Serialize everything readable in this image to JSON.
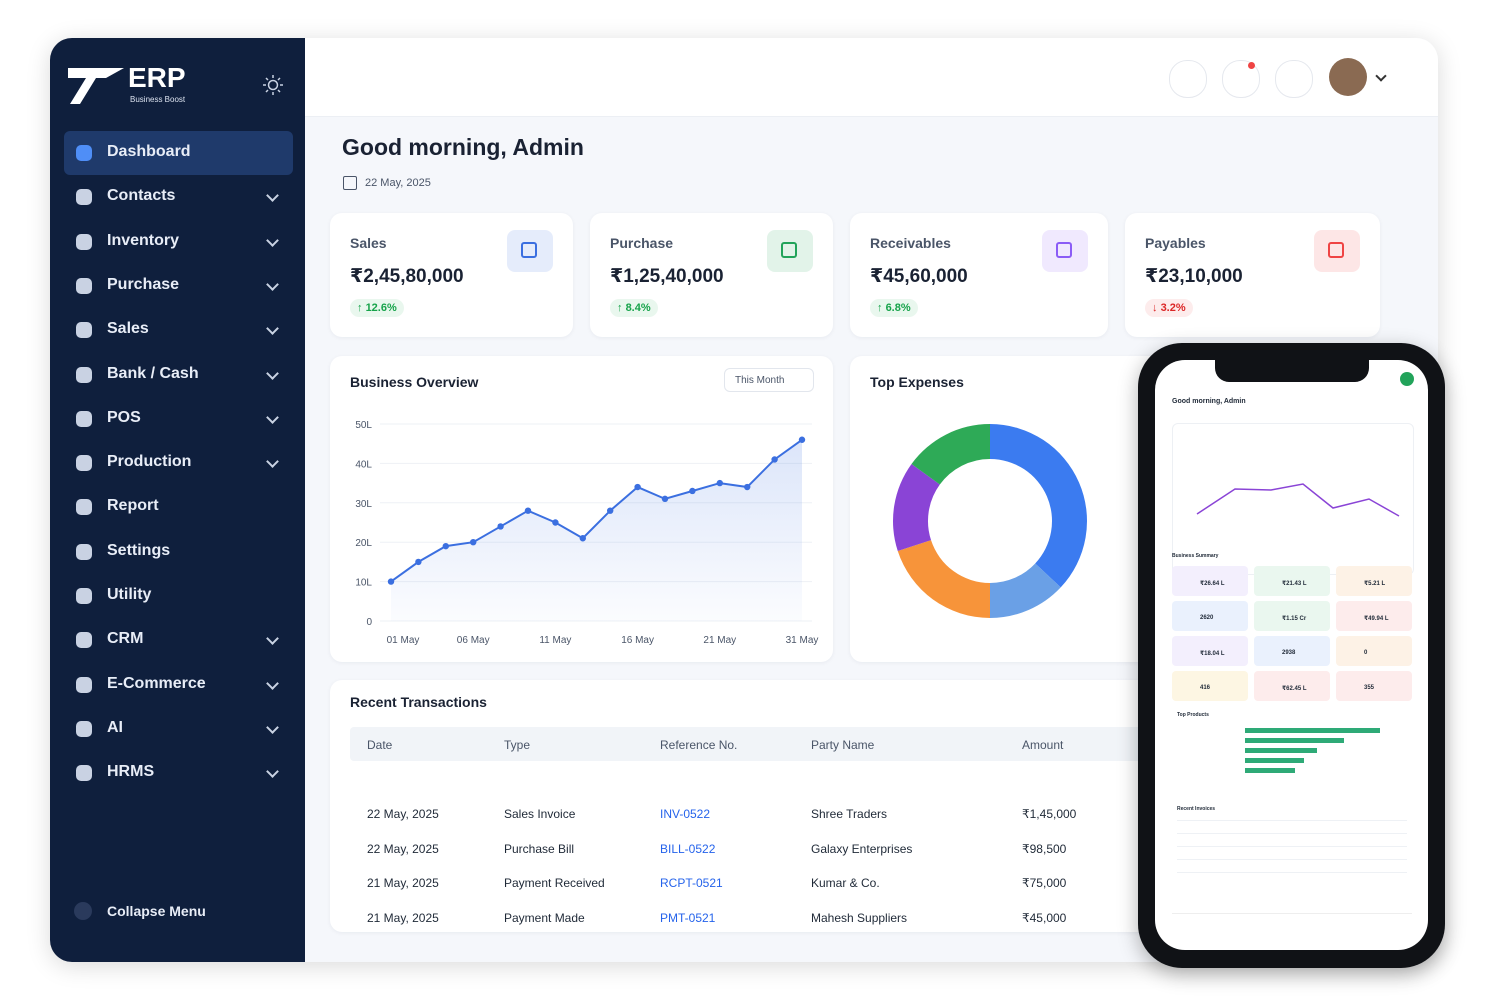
{
  "brand": {
    "name": "ERP",
    "tagline": "Business Boost"
  },
  "sidebar": {
    "items": [
      {
        "label": "Dashboard",
        "expandable": false,
        "active": true
      },
      {
        "label": "Contacts",
        "expandable": true
      },
      {
        "label": "Inventory",
        "expandable": true
      },
      {
        "label": "Purchase",
        "expandable": true
      },
      {
        "label": "Sales",
        "expandable": true
      },
      {
        "label": "Bank / Cash",
        "expandable": true
      },
      {
        "label": "POS",
        "expandable": true
      },
      {
        "label": "Production",
        "expandable": true
      },
      {
        "label": "Report",
        "expandable": false
      },
      {
        "label": "Settings",
        "expandable": false
      },
      {
        "label": "Utility",
        "expandable": false
      },
      {
        "label": "CRM",
        "expandable": true
      },
      {
        "label": "E-Commerce",
        "expandable": true
      },
      {
        "label": "AI",
        "expandable": true
      },
      {
        "label": "HRMS",
        "expandable": true
      }
    ],
    "collapse": "Collapse Menu"
  },
  "greeting": {
    "title": "Good morning, Admin",
    "date": "22 May, 2025"
  },
  "kpis": [
    {
      "label": "Sales",
      "value": "₹2,45,80,000",
      "change": "12.6%",
      "direction": "up",
      "color": "#3b6fe0"
    },
    {
      "label": "Purchase",
      "value": "₹1,25,40,000",
      "change": "8.4%",
      "direction": "up",
      "color": "#22a35a"
    },
    {
      "label": "Receivables",
      "value": "₹45,60,000",
      "change": "6.8%",
      "direction": "up",
      "color": "#8b5cf6"
    },
    {
      "label": "Payables",
      "value": "₹23,10,000",
      "change": "3.2%",
      "direction": "down",
      "color": "#ef4444"
    }
  ],
  "chart_data": [
    {
      "type": "line",
      "title": "Business Overview",
      "filter": "This Month",
      "categories": [
        "01 May",
        null,
        null,
        "06 May",
        null,
        null,
        "11 May",
        null,
        null,
        "16 May",
        null,
        null,
        "21 May",
        null,
        null,
        "31 May"
      ],
      "values": [
        10,
        15,
        19,
        20,
        24,
        28,
        25,
        21,
        28,
        34,
        31,
        33,
        35,
        34,
        41,
        46
      ],
      "color": "#3b6fe0",
      "ylim": [
        0,
        50
      ],
      "yticks": [
        0,
        {
          "value": 10,
          "label": "10L"
        },
        {
          "value": 20,
          "label": "20L"
        },
        {
          "value": 30,
          "label": "30L"
        },
        {
          "value": 40,
          "label": "40L"
        },
        {
          "value": 50,
          "label": "50L"
        }
      ],
      "grid": true
    },
    {
      "type": "pie",
      "title": "Top Expenses",
      "values": [
        37,
        13,
        20,
        15,
        15
      ],
      "colors": [
        "#3b7bf0",
        "#6aa0e6",
        "#f7943a",
        "#8a44d6",
        "#2eaa57"
      ],
      "hole": true
    }
  ],
  "transactions": {
    "title": "Recent Transactions",
    "columns": [
      "Date",
      "Type",
      "Reference No.",
      "Party Name",
      "Amount"
    ],
    "rows": [
      [
        "22 May, 2025",
        "Sales Invoice",
        "INV-0522",
        "Shree Traders",
        "₹1,45,000"
      ],
      [
        "22 May, 2025",
        "Purchase Bill",
        "BILL-0522",
        "Galaxy Enterprises",
        "₹98,500"
      ],
      [
        "21 May, 2025",
        "Payment Received",
        "RCPT-0521",
        "Kumar & Co.",
        "₹75,000"
      ],
      [
        "21 May, 2025",
        "Payment Made",
        "PMT-0521",
        "Mahesh Suppliers",
        "₹45,000"
      ]
    ]
  },
  "phone": {
    "greeting": "Good morning, Admin",
    "summary_title": "Business Summary",
    "summary": [
      "₹26.64 L",
      "₹21.43 L",
      "₹5.21 L",
      "2620",
      "₹1.15 Cr",
      "₹49.94 L",
      "₹18.04 L",
      "2938",
      "0",
      "416",
      "₹62.45 L",
      "355"
    ],
    "products_title": "Top Products",
    "invoices_title": "Recent Invoices"
  }
}
